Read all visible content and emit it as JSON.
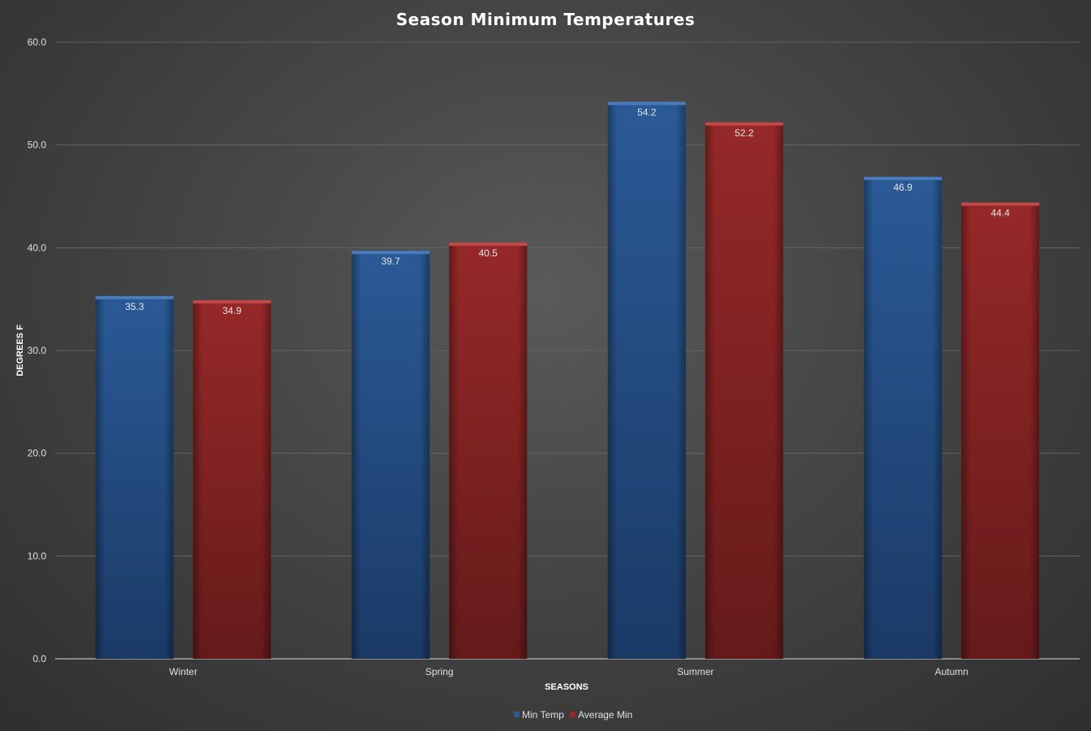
{
  "chart_data": {
    "type": "bar",
    "title": "Season Minimum Temperatures",
    "xlabel": "SEASONS",
    "ylabel": "DEGREES F",
    "categories": [
      "Winter",
      "Spring",
      "Summer",
      "Autumn"
    ],
    "series": [
      {
        "name": "Min Temp",
        "values": [
          35.3,
          39.7,
          54.2,
          46.9
        ],
        "color": "#23508a"
      },
      {
        "name": "Average Min",
        "values": [
          34.9,
          40.5,
          52.2,
          44.4
        ],
        "color": "#8a2222"
      }
    ],
    "ylim": [
      0,
      60
    ],
    "yticks": [
      "0.0",
      "10.0",
      "20.0",
      "30.0",
      "40.0",
      "50.0",
      "60.0"
    ],
    "data_labels": true,
    "grid": true,
    "legend_position": "bottom"
  }
}
